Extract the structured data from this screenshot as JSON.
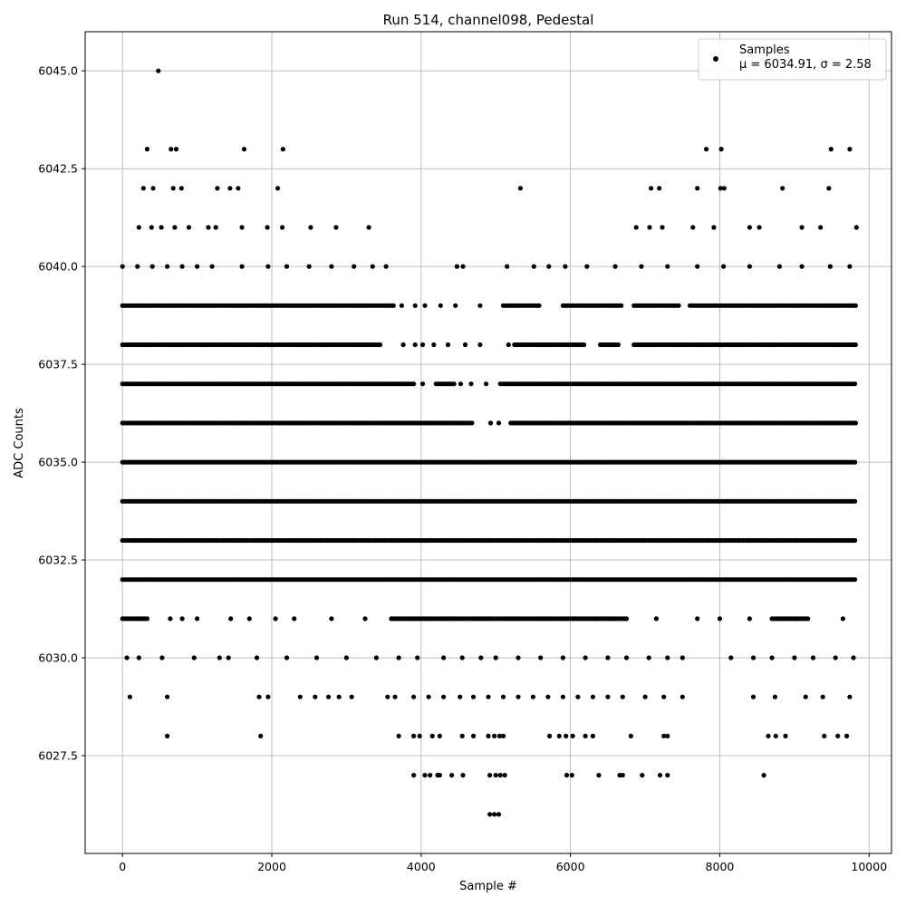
{
  "chart_data": {
    "type": "scatter",
    "title": "Run 514, channel098, Pedestal",
    "xlabel": "Sample #",
    "ylabel": "ADC Counts",
    "xlim": [
      -500,
      10300
    ],
    "ylim": [
      6025.0,
      6046.0
    ],
    "xticks": [
      0,
      2000,
      4000,
      6000,
      8000,
      10000
    ],
    "yticks": [
      6027.5,
      6030.0,
      6032.5,
      6035.0,
      6037.5,
      6040.0,
      6042.5,
      6045.0
    ],
    "xtick_labels": [
      "0",
      "2000",
      "4000",
      "6000",
      "8000",
      "10000"
    ],
    "ytick_labels": [
      "6027.5",
      "6030.0",
      "6032.5",
      "6035.0",
      "6037.5",
      "6040.0",
      "6042.5",
      "6045.0"
    ],
    "grid": true,
    "legend_position": "top-right",
    "marker_color": "#000000",
    "series": [
      {
        "name": "Samples",
        "stats_label": "μ = 6034.91, σ = 2.58",
        "points": [
          [
            480,
            6045
          ],
          [
            330,
            6043
          ],
          [
            650,
            6043
          ],
          [
            720,
            6043
          ],
          [
            1630,
            6043
          ],
          [
            2150,
            6043
          ],
          [
            7820,
            6043
          ],
          [
            8020,
            6043
          ],
          [
            9490,
            6043
          ],
          [
            9740,
            6043
          ],
          [
            280,
            6042
          ],
          [
            410,
            6042
          ],
          [
            680,
            6042
          ],
          [
            790,
            6042
          ],
          [
            1270,
            6042
          ],
          [
            1440,
            6042
          ],
          [
            1550,
            6042
          ],
          [
            2080,
            6042
          ],
          [
            5330,
            6042
          ],
          [
            7080,
            6042
          ],
          [
            7190,
            6042
          ],
          [
            7700,
            6042
          ],
          [
            8010,
            6042
          ],
          [
            8060,
            6042
          ],
          [
            8840,
            6042
          ],
          [
            9460,
            6042
          ],
          [
            220,
            6041
          ],
          [
            390,
            6041
          ],
          [
            520,
            6041
          ],
          [
            700,
            6041
          ],
          [
            890,
            6041
          ],
          [
            1150,
            6041
          ],
          [
            1250,
            6041
          ],
          [
            1600,
            6041
          ],
          [
            1940,
            6041
          ],
          [
            2140,
            6041
          ],
          [
            2520,
            6041
          ],
          [
            2860,
            6041
          ],
          [
            3300,
            6041
          ],
          [
            6880,
            6041
          ],
          [
            7060,
            6041
          ],
          [
            7230,
            6041
          ],
          [
            7640,
            6041
          ],
          [
            7920,
            6041
          ],
          [
            8400,
            6041
          ],
          [
            8530,
            6041
          ],
          [
            9100,
            6041
          ],
          [
            9350,
            6041
          ],
          [
            9830,
            6041
          ],
          [
            0,
            6040
          ],
          [
            200,
            6040
          ],
          [
            400,
            6040
          ],
          [
            600,
            6040
          ],
          [
            800,
            6040
          ],
          [
            1000,
            6040
          ],
          [
            1200,
            6040
          ],
          [
            1600,
            6040
          ],
          [
            1950,
            6040
          ],
          [
            2200,
            6040
          ],
          [
            2500,
            6040
          ],
          [
            2800,
            6040
          ],
          [
            3100,
            6040
          ],
          [
            3350,
            6040
          ],
          [
            3530,
            6040
          ],
          [
            4480,
            6040
          ],
          [
            4560,
            6040
          ],
          [
            5150,
            6040
          ],
          [
            5510,
            6040
          ],
          [
            5710,
            6040
          ],
          [
            5930,
            6040
          ],
          [
            6220,
            6040
          ],
          [
            6600,
            6040
          ],
          [
            6950,
            6040
          ],
          [
            7300,
            6040
          ],
          [
            7700,
            6040
          ],
          [
            8050,
            6040
          ],
          [
            8400,
            6040
          ],
          [
            8800,
            6040
          ],
          [
            9100,
            6040
          ],
          [
            9480,
            6040
          ],
          [
            9740,
            6040
          ],
          [
            3740,
            6039
          ],
          [
            3920,
            6039
          ],
          [
            4050,
            6039
          ],
          [
            4260,
            6039
          ],
          [
            4460,
            6039
          ],
          [
            4790,
            6039
          ],
          [
            3760,
            6038
          ],
          [
            3920,
            6038
          ],
          [
            4020,
            6038
          ],
          [
            4170,
            6038
          ],
          [
            4360,
            6038
          ],
          [
            4590,
            6038
          ],
          [
            4790,
            6038
          ],
          [
            5170,
            6038
          ],
          [
            4020,
            6037
          ],
          [
            4530,
            6037
          ],
          [
            4670,
            6037
          ],
          [
            4870,
            6037
          ],
          [
            5060,
            6037
          ],
          [
            4930,
            6036
          ],
          [
            5040,
            6036
          ],
          [
            640,
            6031
          ],
          [
            800,
            6031
          ],
          [
            1000,
            6031
          ],
          [
            1450,
            6031
          ],
          [
            1700,
            6031
          ],
          [
            2050,
            6031
          ],
          [
            2300,
            6031
          ],
          [
            2800,
            6031
          ],
          [
            3250,
            6031
          ],
          [
            7150,
            6031
          ],
          [
            7700,
            6031
          ],
          [
            8000,
            6031
          ],
          [
            8400,
            6031
          ],
          [
            9650,
            6031
          ],
          [
            60,
            6030
          ],
          [
            220,
            6030
          ],
          [
            530,
            6030
          ],
          [
            960,
            6030
          ],
          [
            1300,
            6030
          ],
          [
            1420,
            6030
          ],
          [
            1800,
            6030
          ],
          [
            2200,
            6030
          ],
          [
            2600,
            6030
          ],
          [
            3000,
            6030
          ],
          [
            3400,
            6030
          ],
          [
            3700,
            6030
          ],
          [
            3950,
            6030
          ],
          [
            4300,
            6030
          ],
          [
            4550,
            6030
          ],
          [
            4800,
            6030
          ],
          [
            5000,
            6030
          ],
          [
            5300,
            6030
          ],
          [
            5600,
            6030
          ],
          [
            5900,
            6030
          ],
          [
            6200,
            6030
          ],
          [
            6500,
            6030
          ],
          [
            6750,
            6030
          ],
          [
            7050,
            6030
          ],
          [
            7300,
            6030
          ],
          [
            7500,
            6030
          ],
          [
            8150,
            6030
          ],
          [
            8450,
            6030
          ],
          [
            8700,
            6030
          ],
          [
            9000,
            6030
          ],
          [
            9250,
            6030
          ],
          [
            9550,
            6030
          ],
          [
            9790,
            6030
          ],
          [
            100,
            6029
          ],
          [
            600,
            6029
          ],
          [
            1830,
            6029
          ],
          [
            1950,
            6029
          ],
          [
            2380,
            6029
          ],
          [
            2580,
            6029
          ],
          [
            2760,
            6029
          ],
          [
            2900,
            6029
          ],
          [
            3070,
            6029
          ],
          [
            3550,
            6029
          ],
          [
            3650,
            6029
          ],
          [
            3900,
            6029
          ],
          [
            4100,
            6029
          ],
          [
            4300,
            6029
          ],
          [
            4520,
            6029
          ],
          [
            4700,
            6029
          ],
          [
            4900,
            6029
          ],
          [
            5100,
            6029
          ],
          [
            5300,
            6029
          ],
          [
            5500,
            6029
          ],
          [
            5700,
            6029
          ],
          [
            5900,
            6029
          ],
          [
            6100,
            6029
          ],
          [
            6300,
            6029
          ],
          [
            6500,
            6029
          ],
          [
            6700,
            6029
          ],
          [
            7000,
            6029
          ],
          [
            7250,
            6029
          ],
          [
            7500,
            6029
          ],
          [
            8450,
            6029
          ],
          [
            8740,
            6029
          ],
          [
            9150,
            6029
          ],
          [
            9380,
            6029
          ],
          [
            9740,
            6029
          ],
          [
            600,
            6028
          ],
          [
            1850,
            6028
          ],
          [
            3700,
            6028
          ],
          [
            3900,
            6028
          ],
          [
            3980,
            6028
          ],
          [
            4150,
            6028
          ],
          [
            4250,
            6028
          ],
          [
            4550,
            6028
          ],
          [
            4700,
            6028
          ],
          [
            4900,
            6028
          ],
          [
            4980,
            6028
          ],
          [
            5050,
            6028
          ],
          [
            5100,
            6028
          ],
          [
            5720,
            6028
          ],
          [
            5850,
            6028
          ],
          [
            5940,
            6028
          ],
          [
            6030,
            6028
          ],
          [
            6200,
            6028
          ],
          [
            6300,
            6028
          ],
          [
            6810,
            6028
          ],
          [
            7250,
            6028
          ],
          [
            7300,
            6028
          ],
          [
            8650,
            6028
          ],
          [
            8750,
            6028
          ],
          [
            8880,
            6028
          ],
          [
            9400,
            6028
          ],
          [
            9580,
            6028
          ],
          [
            9700,
            6028
          ],
          [
            3900,
            6027
          ],
          [
            4050,
            6027
          ],
          [
            4120,
            6027
          ],
          [
            4220,
            6027
          ],
          [
            4250,
            6027
          ],
          [
            4410,
            6027
          ],
          [
            4560,
            6027
          ],
          [
            4920,
            6027
          ],
          [
            5000,
            6027
          ],
          [
            5060,
            6027
          ],
          [
            5120,
            6027
          ],
          [
            5950,
            6027
          ],
          [
            6020,
            6027
          ],
          [
            6380,
            6027
          ],
          [
            6660,
            6027
          ],
          [
            6700,
            6027
          ],
          [
            6960,
            6027
          ],
          [
            7200,
            6027
          ],
          [
            7300,
            6027
          ],
          [
            8590,
            6027
          ],
          [
            4920,
            6026
          ],
          [
            4980,
            6026
          ],
          [
            5040,
            6026
          ]
        ],
        "dense_rows": [
          {
            "y": 6039,
            "x_ranges": [
              [
                0,
                3650
              ],
              [
                5100,
                5600
              ],
              [
                5900,
                6700
              ],
              [
                6850,
                7450
              ],
              [
                7600,
                9830
              ]
            ]
          },
          {
            "y": 6038,
            "x_ranges": [
              [
                0,
                3450
              ],
              [
                5250,
                6200
              ],
              [
                6400,
                6650
              ],
              [
                6850,
                9830
              ]
            ]
          },
          {
            "y": 6037,
            "x_ranges": [
              [
                0,
                3900
              ],
              [
                4200,
                4450
              ],
              [
                5100,
                9830
              ]
            ]
          },
          {
            "y": 6036,
            "x_ranges": [
              [
                0,
                4700
              ],
              [
                5200,
                9830
              ]
            ]
          },
          {
            "y": 6035,
            "x_ranges": [
              [
                0,
                9830
              ]
            ]
          },
          {
            "y": 6034,
            "x_ranges": [
              [
                0,
                9830
              ]
            ]
          },
          {
            "y": 6033,
            "x_ranges": [
              [
                0,
                9830
              ]
            ]
          },
          {
            "y": 6032,
            "x_ranges": [
              [
                0,
                9830
              ]
            ]
          },
          {
            "y": 6031,
            "x_ranges": [
              [
                0,
                350
              ],
              [
                3600,
                6750
              ],
              [
                8700,
                9200
              ]
            ]
          }
        ]
      }
    ]
  }
}
